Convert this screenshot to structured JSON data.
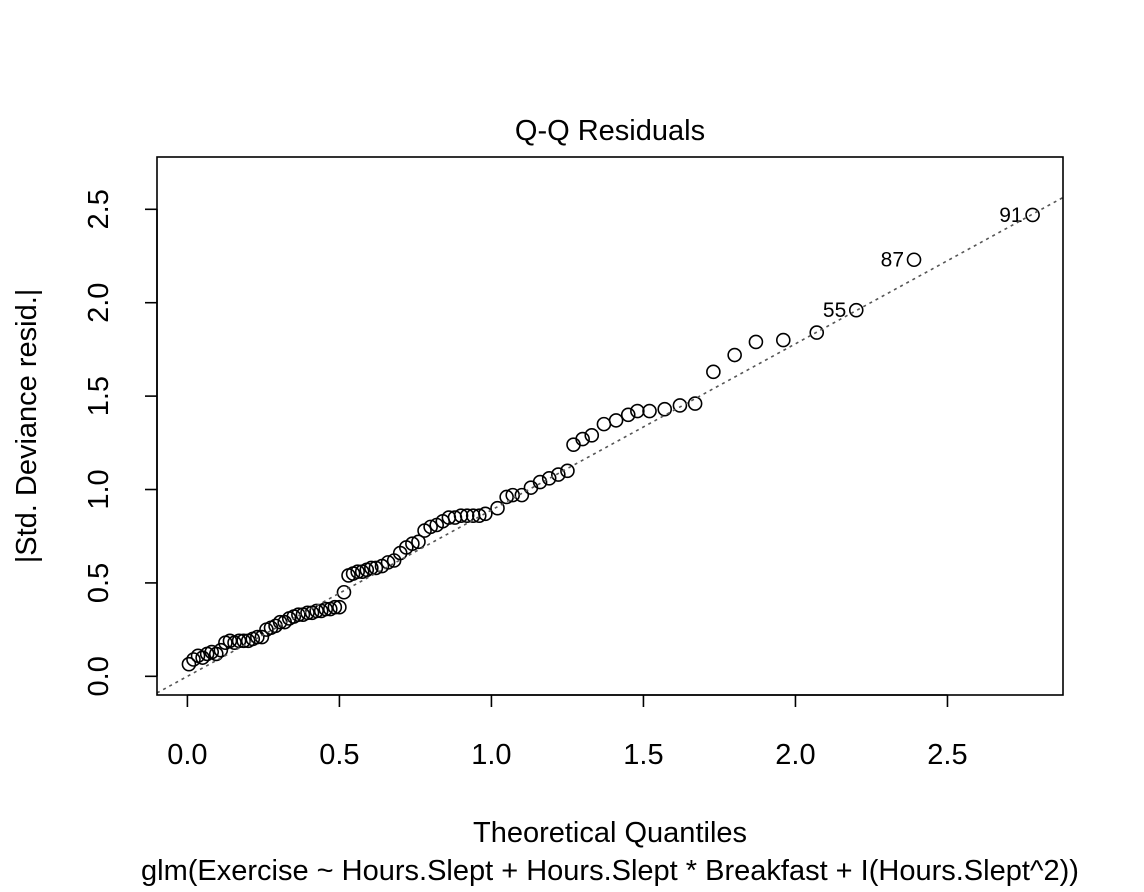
{
  "chart_data": {
    "type": "scatter",
    "title": "Q-Q Residuals",
    "xlabel": "Theoretical Quantiles",
    "ylabel": "|Std. Deviance resid.|",
    "subtitle": "glm(Exercise ~ Hours.Slept + Hours.Slept * Breakfast + I(Hours.Slept^2))",
    "xlim": [
      -0.1,
      2.88
    ],
    "ylim": [
      -0.1,
      2.78
    ],
    "x_ticks": [
      0.0,
      0.5,
      1.0,
      1.5,
      2.0,
      2.5
    ],
    "x_tick_labels": [
      "0.0",
      "0.5",
      "1.0",
      "1.5",
      "2.0",
      "2.5"
    ],
    "y_ticks": [
      0.0,
      0.5,
      1.0,
      1.5,
      2.0,
      2.5
    ],
    "y_tick_labels": [
      "0.0",
      "0.5",
      "1.0",
      "1.5",
      "2.0",
      "2.5"
    ],
    "grid": false,
    "reference_line": {
      "slope": 0.89,
      "intercept": 0.0,
      "style": "dotted"
    },
    "points": [
      {
        "x": 0.005,
        "y": 0.065
      },
      {
        "x": 0.02,
        "y": 0.09
      },
      {
        "x": 0.035,
        "y": 0.11
      },
      {
        "x": 0.05,
        "y": 0.1
      },
      {
        "x": 0.065,
        "y": 0.12
      },
      {
        "x": 0.08,
        "y": 0.13
      },
      {
        "x": 0.095,
        "y": 0.12
      },
      {
        "x": 0.11,
        "y": 0.14
      },
      {
        "x": 0.125,
        "y": 0.18
      },
      {
        "x": 0.14,
        "y": 0.19
      },
      {
        "x": 0.155,
        "y": 0.18
      },
      {
        "x": 0.17,
        "y": 0.19
      },
      {
        "x": 0.185,
        "y": 0.19
      },
      {
        "x": 0.2,
        "y": 0.19
      },
      {
        "x": 0.215,
        "y": 0.2
      },
      {
        "x": 0.23,
        "y": 0.21
      },
      {
        "x": 0.245,
        "y": 0.21
      },
      {
        "x": 0.26,
        "y": 0.25
      },
      {
        "x": 0.275,
        "y": 0.26
      },
      {
        "x": 0.29,
        "y": 0.27
      },
      {
        "x": 0.305,
        "y": 0.29
      },
      {
        "x": 0.32,
        "y": 0.29
      },
      {
        "x": 0.335,
        "y": 0.31
      },
      {
        "x": 0.35,
        "y": 0.32
      },
      {
        "x": 0.365,
        "y": 0.33
      },
      {
        "x": 0.38,
        "y": 0.33
      },
      {
        "x": 0.395,
        "y": 0.34
      },
      {
        "x": 0.41,
        "y": 0.34
      },
      {
        "x": 0.425,
        "y": 0.35
      },
      {
        "x": 0.44,
        "y": 0.35
      },
      {
        "x": 0.455,
        "y": 0.36
      },
      {
        "x": 0.47,
        "y": 0.36
      },
      {
        "x": 0.485,
        "y": 0.37
      },
      {
        "x": 0.5,
        "y": 0.37
      },
      {
        "x": 0.515,
        "y": 0.45
      },
      {
        "x": 0.53,
        "y": 0.54
      },
      {
        "x": 0.545,
        "y": 0.55
      },
      {
        "x": 0.56,
        "y": 0.56
      },
      {
        "x": 0.575,
        "y": 0.56
      },
      {
        "x": 0.59,
        "y": 0.57
      },
      {
        "x": 0.605,
        "y": 0.58
      },
      {
        "x": 0.62,
        "y": 0.58
      },
      {
        "x": 0.64,
        "y": 0.59
      },
      {
        "x": 0.66,
        "y": 0.61
      },
      {
        "x": 0.68,
        "y": 0.62
      },
      {
        "x": 0.7,
        "y": 0.66
      },
      {
        "x": 0.72,
        "y": 0.69
      },
      {
        "x": 0.74,
        "y": 0.71
      },
      {
        "x": 0.76,
        "y": 0.72
      },
      {
        "x": 0.78,
        "y": 0.78
      },
      {
        "x": 0.8,
        "y": 0.8
      },
      {
        "x": 0.82,
        "y": 0.81
      },
      {
        "x": 0.84,
        "y": 0.83
      },
      {
        "x": 0.86,
        "y": 0.85
      },
      {
        "x": 0.88,
        "y": 0.85
      },
      {
        "x": 0.9,
        "y": 0.86
      },
      {
        "x": 0.92,
        "y": 0.86
      },
      {
        "x": 0.94,
        "y": 0.86
      },
      {
        "x": 0.96,
        "y": 0.86
      },
      {
        "x": 0.98,
        "y": 0.87
      },
      {
        "x": 1.02,
        "y": 0.9
      },
      {
        "x": 1.05,
        "y": 0.96
      },
      {
        "x": 1.07,
        "y": 0.97
      },
      {
        "x": 1.1,
        "y": 0.97
      },
      {
        "x": 1.13,
        "y": 1.01
      },
      {
        "x": 1.16,
        "y": 1.04
      },
      {
        "x": 1.19,
        "y": 1.06
      },
      {
        "x": 1.22,
        "y": 1.08
      },
      {
        "x": 1.25,
        "y": 1.1
      },
      {
        "x": 1.27,
        "y": 1.24
      },
      {
        "x": 1.3,
        "y": 1.27
      },
      {
        "x": 1.33,
        "y": 1.29
      },
      {
        "x": 1.37,
        "y": 1.35
      },
      {
        "x": 1.41,
        "y": 1.37
      },
      {
        "x": 1.45,
        "y": 1.4
      },
      {
        "x": 1.48,
        "y": 1.42
      },
      {
        "x": 1.52,
        "y": 1.42
      },
      {
        "x": 1.57,
        "y": 1.43
      },
      {
        "x": 1.62,
        "y": 1.45
      },
      {
        "x": 1.67,
        "y": 1.46
      },
      {
        "x": 1.73,
        "y": 1.63
      },
      {
        "x": 1.8,
        "y": 1.72
      },
      {
        "x": 1.87,
        "y": 1.79
      },
      {
        "x": 1.96,
        "y": 1.8
      },
      {
        "x": 2.07,
        "y": 1.84
      },
      {
        "x": 2.2,
        "y": 1.96,
        "label": "55"
      },
      {
        "x": 2.39,
        "y": 2.23,
        "label": "87"
      },
      {
        "x": 2.78,
        "y": 2.47,
        "label": "91"
      }
    ]
  }
}
